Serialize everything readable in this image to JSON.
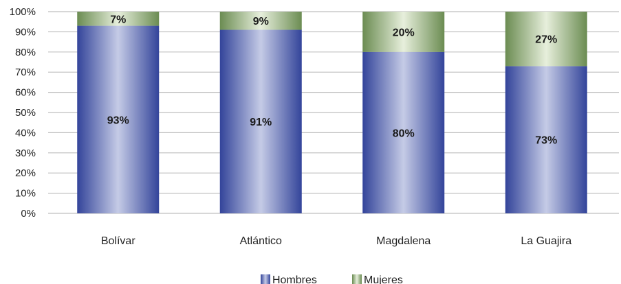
{
  "chart_data": {
    "type": "bar",
    "stacked": true,
    "categories": [
      "Bolívar",
      "Atlántico",
      "Magdalena",
      "La Guajira"
    ],
    "series": [
      {
        "name": "Hombres",
        "values": [
          93,
          91,
          80,
          73
        ],
        "labels": [
          "93%",
          "91%",
          "80%",
          "73%"
        ],
        "color": "#3a4a9c"
      },
      {
        "name": "Mujeres",
        "values": [
          7,
          9,
          20,
          27
        ],
        "labels": [
          "7%",
          "9%",
          "20%",
          "27%"
        ],
        "color": "#6f8f56"
      }
    ],
    "y_ticks": [
      "0%",
      "10%",
      "20%",
      "30%",
      "40%",
      "50%",
      "60%",
      "70%",
      "80%",
      "90%",
      "100%"
    ],
    "ylim": [
      0,
      100
    ],
    "grid": true,
    "legend_position": "bottom-center",
    "title": "",
    "xlabel": "",
    "ylabel": ""
  }
}
